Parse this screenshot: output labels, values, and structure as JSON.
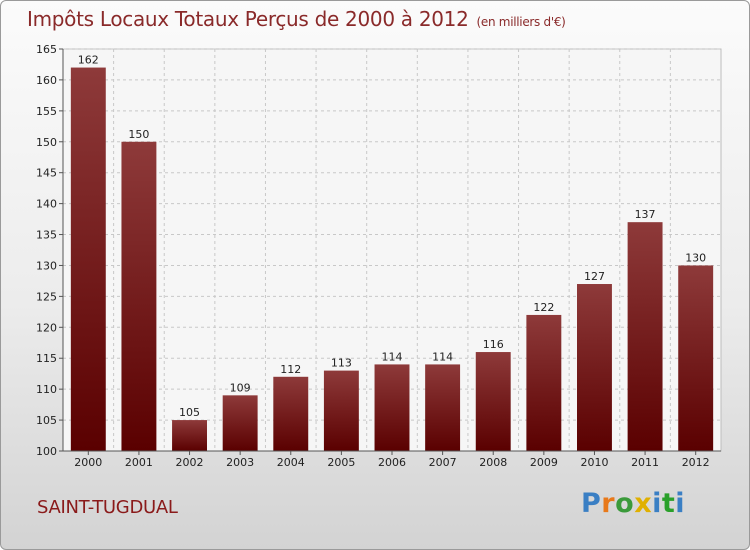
{
  "title": "Impôts Locaux Totaux Perçus de 2000 à 2012",
  "unit_note": "(en milliers d'€)",
  "commune": "SAINT-TUGDUAL",
  "logo": {
    "letters": [
      "P",
      "r",
      "o",
      "x",
      "i",
      "t",
      "i"
    ]
  },
  "colors": {
    "bar_top": "#8e3a3a",
    "bar_bottom": "#5a0000",
    "title": "#8a2a2a",
    "logo": [
      "#3a7fc4",
      "#e8791a",
      "#3a9a3a",
      "#e0b000",
      "#3a7fc4",
      "#2aa02a",
      "#3a7fc4"
    ]
  },
  "chart_data": {
    "type": "bar",
    "categories": [
      "2000",
      "2001",
      "2002",
      "2003",
      "2004",
      "2005",
      "2006",
      "2007",
      "2008",
      "2009",
      "2010",
      "2011",
      "2012"
    ],
    "values": [
      162,
      150,
      105,
      109,
      112,
      113,
      114,
      114,
      116,
      122,
      127,
      137,
      130
    ],
    "ylim": [
      100,
      165
    ],
    "yticks": [
      "100",
      "105",
      "110",
      "115",
      "120",
      "125",
      "130",
      "135",
      "140",
      "145",
      "150",
      "155",
      "160",
      "165"
    ],
    "grid": true
  }
}
